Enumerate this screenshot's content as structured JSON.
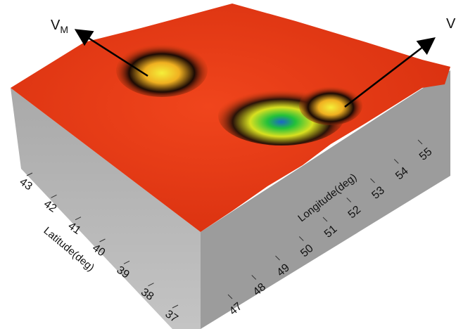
{
  "chart_data": {
    "type": "surface3d",
    "x_label": "Longitude(deg)",
    "y_label": "Latitude(deg)",
    "xlim": [
      47,
      55
    ],
    "xticks": [
      47,
      48,
      49,
      50,
      51,
      52,
      53,
      54,
      55
    ],
    "ylim": [
      37,
      43
    ],
    "yticks": [
      37,
      38,
      39,
      40,
      41,
      42,
      43
    ],
    "annotations": [
      {
        "text": "V",
        "sub": "M"
      },
      {
        "text": "V"
      }
    ]
  }
}
